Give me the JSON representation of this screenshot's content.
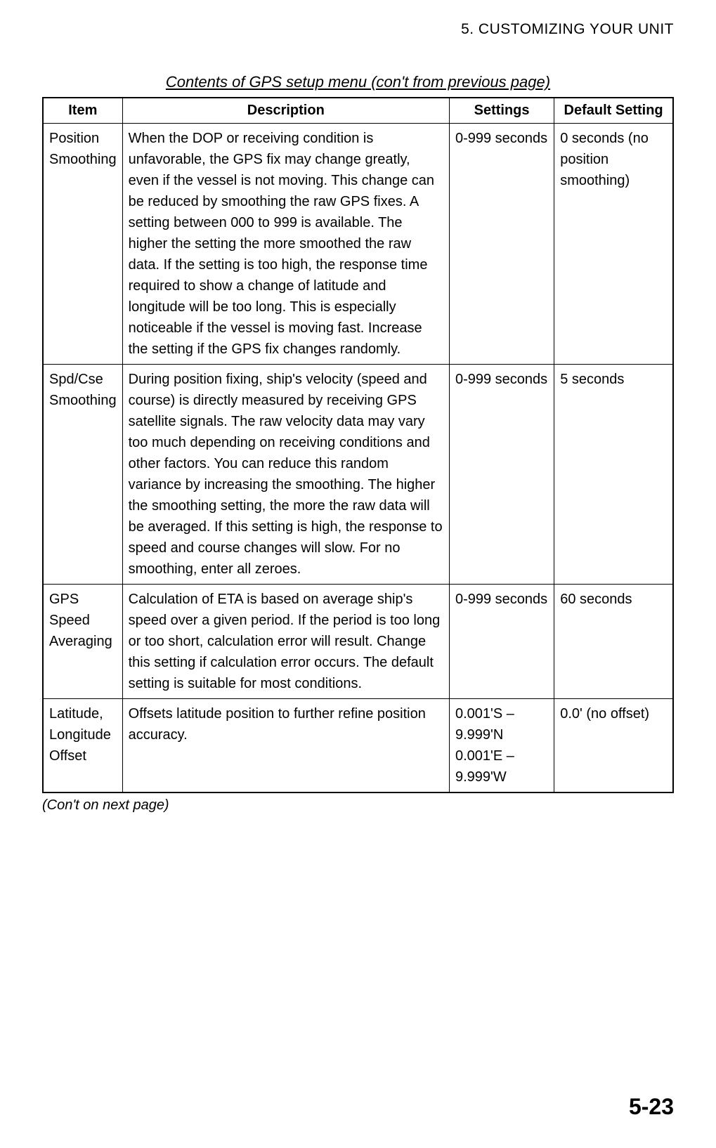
{
  "chapter_header": "5. CUSTOMIZING YOUR UNIT",
  "table_title": "Contents of GPS setup menu (con't from previous page)",
  "columns": {
    "item": "Item",
    "description": "Description",
    "settings": "Settings",
    "default": "Default Setting"
  },
  "rows": [
    {
      "item": "Position Smoothing",
      "description": "When the DOP or receiving condition is unfavorable, the GPS fix may change greatly, even if the vessel is not moving. This change can be reduced by smoothing the raw GPS fixes. A setting between 000 to 999 is available. The higher the setting the more smoothed the raw data. If the setting is too high, the response time required to show a change of latitude and longitude will be too long. This is especially noticeable if the vessel is moving fast. Increase the setting if the GPS fix changes randomly.",
      "settings": "0-999 seconds",
      "default": "0 seconds (no position smoothing)"
    },
    {
      "item": "Spd/Cse Smoothing",
      "description": "During position fixing, ship's velocity (speed and course) is directly measured by receiving GPS satellite signals. The raw velocity data may vary too much depending on receiving conditions and other factors. You can reduce this random variance by increasing the smoothing. The higher the smoothing setting, the more the raw data will be averaged. If this setting is high, the response to speed and course changes will slow. For no smoothing, enter all zeroes.",
      "settings": "0-999 seconds",
      "default": "5 seconds"
    },
    {
      "item": "GPS Speed Averaging",
      "description": "Calculation of ETA is based on average ship's speed over a given period. If the period is too long or too short, calculation error will result. Change this setting if calculation error occurs. The default setting is suitable for most conditions.",
      "settings": "0-999 seconds",
      "default": "60 seconds"
    },
    {
      "item": "Latitude, Longitude Offset",
      "description": "Offsets latitude position to further refine position accuracy.",
      "settings": "0.001'S – 9.999'N\n0.001'E – 9.999'W",
      "default": "0.0' (no offset)"
    }
  ],
  "continuation_note": "(Con't on next page)",
  "page_number": "5-23"
}
